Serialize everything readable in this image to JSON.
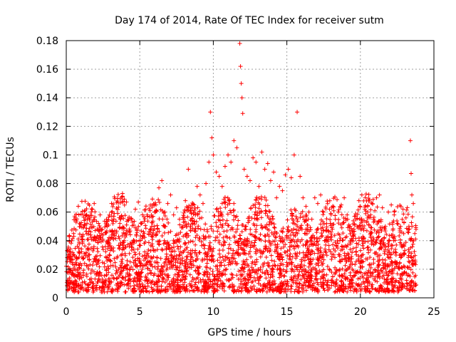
{
  "chart_data": {
    "type": "scatter",
    "title": "Day 174 of 2014, Rate Of TEC Index for receiver sutm",
    "xlabel": "GPS time / hours",
    "ylabel": "ROTI / TECUs",
    "xlim": [
      0,
      25
    ],
    "ylim": [
      0,
      0.18
    ],
    "x_ticks": [
      "0",
      "5",
      "10",
      "15",
      "20",
      "25"
    ],
    "y_ticks": [
      "0",
      "0.02",
      "0.04",
      "0.06",
      "0.08",
      "0.1",
      "0.12",
      "0.14",
      "0.16",
      "0.18"
    ],
    "grid": true,
    "marker": "+",
    "marker_color": "#ff0000",
    "series": [
      {
        "points": [
          [
            0.1,
            0.018
          ],
          [
            0.3,
            0.032
          ],
          [
            0.5,
            0.045
          ],
          [
            0.7,
            0.028
          ],
          [
            0.9,
            0.052
          ],
          [
            1.1,
            0.038
          ],
          [
            1.3,
            0.055
          ],
          [
            1.5,
            0.041
          ],
          [
            1.7,
            0.06
          ],
          [
            1.9,
            0.066
          ],
          [
            2.1,
            0.048
          ],
          [
            2.3,
            0.058
          ],
          [
            2.5,
            0.044
          ],
          [
            2.7,
            0.052
          ],
          [
            2.9,
            0.036
          ],
          [
            3.1,
            0.042
          ],
          [
            3.3,
            0.047
          ],
          [
            3.5,
            0.059
          ],
          [
            3.7,
            0.055
          ],
          [
            3.9,
            0.049
          ],
          [
            4.1,
            0.051
          ],
          [
            4.3,
            0.046
          ],
          [
            4.5,
            0.053
          ],
          [
            4.7,
            0.062
          ],
          [
            4.9,
            0.067
          ],
          [
            5.1,
            0.052
          ],
          [
            5.3,
            0.045
          ],
          [
            5.5,
            0.058
          ],
          [
            5.7,
            0.061
          ],
          [
            5.9,
            0.057
          ],
          [
            6.1,
            0.065
          ],
          [
            6.3,
            0.077
          ],
          [
            6.5,
            0.082
          ],
          [
            6.7,
            0.06
          ],
          [
            6.9,
            0.066
          ],
          [
            7.1,
            0.072
          ],
          [
            7.3,
            0.058
          ],
          [
            7.5,
            0.063
          ],
          [
            7.7,
            0.055
          ],
          [
            7.9,
            0.05
          ],
          [
            8.1,
            0.068
          ],
          [
            8.3,
            0.09
          ],
          [
            8.5,
            0.059
          ],
          [
            8.7,
            0.065
          ],
          [
            8.9,
            0.078
          ],
          [
            9.1,
            0.072
          ],
          [
            9.3,
            0.066
          ],
          [
            9.5,
            0.08
          ],
          [
            9.7,
            0.095
          ],
          [
            9.8,
            0.13
          ],
          [
            9.9,
            0.112
          ],
          [
            10.0,
            0.1
          ],
          [
            10.2,
            0.088
          ],
          [
            10.4,
            0.085
          ],
          [
            10.6,
            0.078
          ],
          [
            10.8,
            0.092
          ],
          [
            11.0,
            0.1
          ],
          [
            11.2,
            0.095
          ],
          [
            11.4,
            0.11
          ],
          [
            11.6,
            0.105
          ],
          [
            11.8,
            0.178
          ],
          [
            11.85,
            0.162
          ],
          [
            11.9,
            0.15
          ],
          [
            11.95,
            0.14
          ],
          [
            12.0,
            0.129
          ],
          [
            12.1,
            0.09
          ],
          [
            12.3,
            0.085
          ],
          [
            12.5,
            0.082
          ],
          [
            12.7,
            0.098
          ],
          [
            12.9,
            0.095
          ],
          [
            13.1,
            0.078
          ],
          [
            13.3,
            0.102
          ],
          [
            13.5,
            0.09
          ],
          [
            13.7,
            0.094
          ],
          [
            13.9,
            0.082
          ],
          [
            14.1,
            0.088
          ],
          [
            14.3,
            0.07
          ],
          [
            14.5,
            0.078
          ],
          [
            14.7,
            0.075
          ],
          [
            14.9,
            0.086
          ],
          [
            15.1,
            0.09
          ],
          [
            15.3,
            0.084
          ],
          [
            15.5,
            0.1
          ],
          [
            15.7,
            0.13
          ],
          [
            15.9,
            0.085
          ],
          [
            16.1,
            0.07
          ],
          [
            16.3,
            0.064
          ],
          [
            16.5,
            0.06
          ],
          [
            16.7,
            0.055
          ],
          [
            16.9,
            0.07
          ],
          [
            17.1,
            0.066
          ],
          [
            17.3,
            0.072
          ],
          [
            17.5,
            0.06
          ],
          [
            17.7,
            0.052
          ],
          [
            17.9,
            0.062
          ],
          [
            18.1,
            0.048
          ],
          [
            18.3,
            0.055
          ],
          [
            18.5,
            0.06
          ],
          [
            18.7,
            0.065
          ],
          [
            18.9,
            0.07
          ],
          [
            19.1,
            0.058
          ],
          [
            19.3,
            0.05
          ],
          [
            19.5,
            0.046
          ],
          [
            19.7,
            0.055
          ],
          [
            19.9,
            0.068
          ],
          [
            20.1,
            0.072
          ],
          [
            20.3,
            0.062
          ],
          [
            20.5,
            0.06
          ],
          [
            20.7,
            0.058
          ],
          [
            20.9,
            0.055
          ],
          [
            21.1,
            0.07
          ],
          [
            21.3,
            0.072
          ],
          [
            21.5,
            0.063
          ],
          [
            21.7,
            0.05
          ],
          [
            21.9,
            0.06
          ],
          [
            22.1,
            0.065
          ],
          [
            22.3,
            0.058
          ],
          [
            22.5,
            0.052
          ],
          [
            22.7,
            0.046
          ],
          [
            22.9,
            0.062
          ],
          [
            23.1,
            0.056
          ],
          [
            23.3,
            0.05
          ],
          [
            23.4,
            0.11
          ],
          [
            23.45,
            0.087
          ],
          [
            23.5,
            0.072
          ],
          [
            23.6,
            0.066
          ],
          [
            23.7,
            0.045
          ],
          [
            0.2,
            0.008
          ],
          [
            0.6,
            0.012
          ],
          [
            1.0,
            0.009
          ],
          [
            1.4,
            0.015
          ],
          [
            1.8,
            0.01
          ],
          [
            2.2,
            0.013
          ],
          [
            2.6,
            0.007
          ],
          [
            3.0,
            0.011
          ],
          [
            3.4,
            0.009
          ],
          [
            3.8,
            0.014
          ],
          [
            4.2,
            0.01
          ],
          [
            4.6,
            0.012
          ],
          [
            5.0,
            0.008
          ],
          [
            5.4,
            0.015
          ],
          [
            5.8,
            0.011
          ],
          [
            6.2,
            0.009
          ],
          [
            6.6,
            0.013
          ],
          [
            7.0,
            0.01
          ],
          [
            7.4,
            0.016
          ],
          [
            7.8,
            0.012
          ],
          [
            8.2,
            0.008
          ],
          [
            8.6,
            0.014
          ],
          [
            9.0,
            0.011
          ],
          [
            9.4,
            0.018
          ],
          [
            10.1,
            0.015
          ],
          [
            10.5,
            0.012
          ],
          [
            10.9,
            0.02
          ],
          [
            11.3,
            0.016
          ],
          [
            11.7,
            0.013
          ],
          [
            12.2,
            0.009
          ],
          [
            12.6,
            0.011
          ],
          [
            13.0,
            0.014
          ],
          [
            13.4,
            0.008
          ],
          [
            13.8,
            0.012
          ],
          [
            14.2,
            0.01
          ],
          [
            14.6,
            0.016
          ],
          [
            15.0,
            0.009
          ],
          [
            15.4,
            0.012
          ],
          [
            15.8,
            0.007
          ],
          [
            16.2,
            0.011
          ],
          [
            16.6,
            0.009
          ],
          [
            17.0,
            0.013
          ],
          [
            17.4,
            0.008
          ],
          [
            17.8,
            0.012
          ],
          [
            18.2,
            0.01
          ],
          [
            18.6,
            0.015
          ],
          [
            19.0,
            0.008
          ],
          [
            19.4,
            0.012
          ],
          [
            19.8,
            0.009
          ],
          [
            20.2,
            0.014
          ],
          [
            20.6,
            0.01
          ],
          [
            21.0,
            0.012
          ],
          [
            21.4,
            0.008
          ],
          [
            21.8,
            0.013
          ],
          [
            22.2,
            0.009
          ],
          [
            22.6,
            0.011
          ],
          [
            23.0,
            0.008
          ],
          [
            23.5,
            0.012
          ],
          [
            23.7,
            0.009
          ]
        ]
      }
    ],
    "dense_band": {
      "x_range": [
        0.0,
        23.8
      ],
      "y_floor": 0.004,
      "y_ceiling_typical": 0.05,
      "count": 3200
    }
  }
}
